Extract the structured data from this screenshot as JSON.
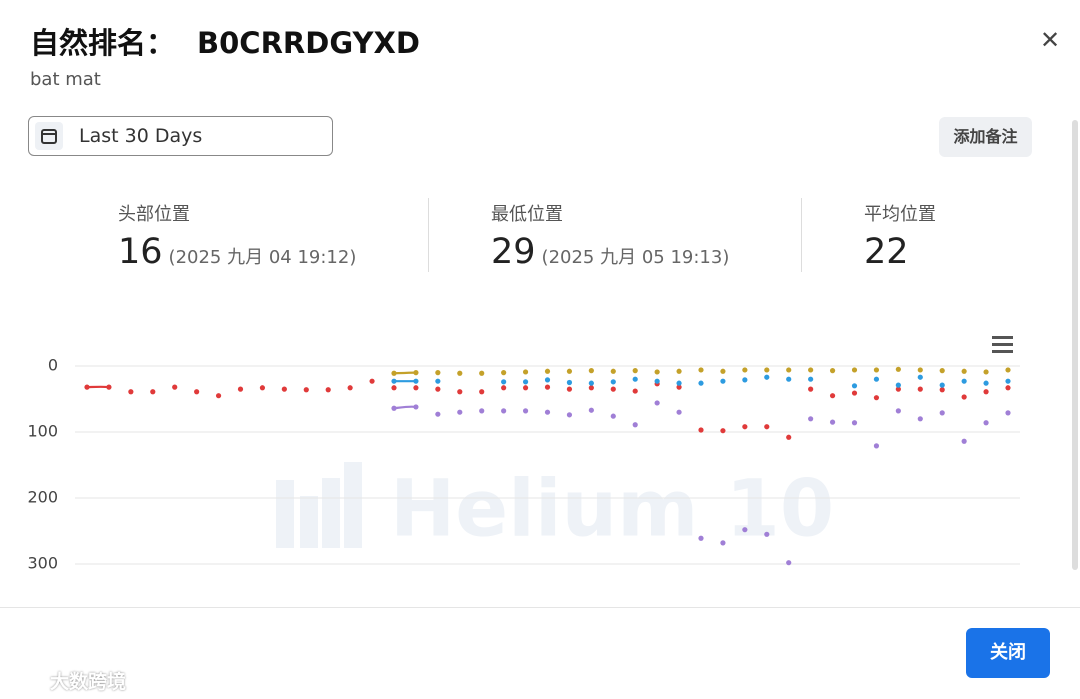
{
  "header": {
    "title": "自然排名：",
    "asin": "B0CRRDGYXD",
    "subtitle": "bat mat"
  },
  "toolbar": {
    "date_range": "Last 30 Days",
    "add_note": "添加备注"
  },
  "stats": [
    {
      "label": "头部位置",
      "value": 16,
      "time": "(2025 九月 04 19:12)"
    },
    {
      "label": "最低位置",
      "value": 29,
      "time": "(2025 九月 05 19:13)"
    },
    {
      "label": "平均位置",
      "value": 22
    }
  ],
  "chart_data": {
    "type": "line",
    "watermark": "Helium 10",
    "categories": [
      null,
      null,
      null,
      null,
      null,
      null,
      null,
      null,
      null,
      null,
      null,
      null,
      null,
      null,
      null,
      null,
      null,
      null,
      null,
      null,
      null,
      null,
      null,
      null,
      null,
      null,
      null,
      null,
      null,
      null,
      null,
      null,
      null,
      null,
      null,
      null,
      null,
      null,
      null,
      null,
      null,
      null,
      null
    ],
    "ylim": [
      0,
      300
    ],
    "y_reversed": true,
    "yticks": [
      0,
      100,
      200,
      300
    ],
    "grid": true,
    "series": [
      {
        "color": "#e03a3a",
        "values": [
          32,
          32,
          39,
          39,
          32,
          39,
          45,
          35,
          33,
          35,
          36,
          36,
          33,
          23,
          33,
          33,
          35,
          39,
          39,
          33,
          33,
          32,
          35,
          33,
          35,
          38,
          27,
          32,
          97,
          98,
          92,
          92,
          108,
          35,
          45,
          41,
          48,
          35,
          35,
          36,
          47,
          39,
          33
        ]
      },
      {
        "color": "#c4a12a",
        "values": [
          null,
          null,
          null,
          null,
          null,
          null,
          null,
          null,
          null,
          null,
          null,
          null,
          null,
          null,
          11,
          10,
          10,
          11,
          11,
          10,
          9,
          8,
          8,
          7,
          8,
          7,
          9,
          8,
          6,
          8,
          6,
          6,
          6,
          6,
          7,
          6,
          6,
          5,
          6,
          7,
          8,
          9,
          6
        ]
      },
      {
        "color": "#2d9be0",
        "values": [
          null,
          null,
          null,
          null,
          null,
          null,
          null,
          null,
          null,
          null,
          null,
          null,
          null,
          null,
          23,
          23,
          23,
          null,
          null,
          24,
          24,
          21,
          25,
          26,
          24,
          20,
          23,
          26,
          26,
          23,
          21,
          17,
          20,
          20,
          null,
          30,
          20,
          29,
          17,
          29,
          23,
          26,
          23
        ]
      },
      {
        "color": "#a07fd6",
        "values": [
          null,
          null,
          null,
          null,
          null,
          null,
          null,
          null,
          null,
          null,
          null,
          null,
          null,
          null,
          64,
          62,
          73,
          70,
          68,
          68,
          68,
          70,
          74,
          67,
          76,
          89,
          56,
          70,
          261,
          268,
          248,
          255,
          298,
          80,
          85,
          86,
          121,
          68,
          80,
          71,
          114,
          86,
          71
        ]
      }
    ]
  },
  "footer": {
    "close": "关闭",
    "watermark": "大数跨境"
  }
}
